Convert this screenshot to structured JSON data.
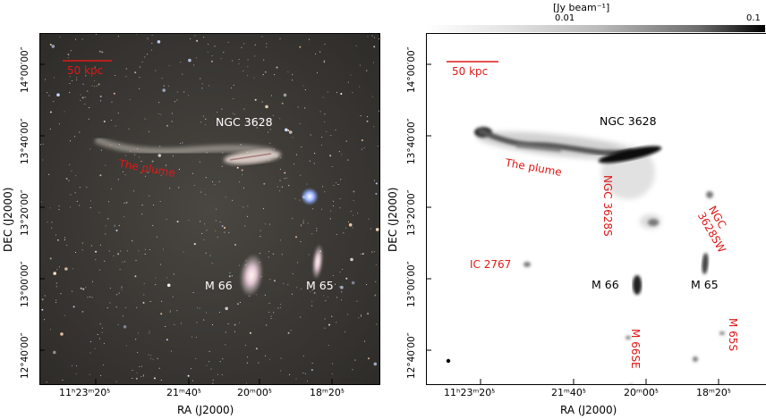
{
  "colorbar": {
    "unit_label": "[Jy beam⁻¹]",
    "tick_min": "0.01",
    "tick_max": "0.1"
  },
  "left_panel": {
    "scale_bar_label": "50 kpc",
    "labels": {
      "ngc3628": "NGC 3628",
      "plume": "The plume",
      "m66": "M 66",
      "m65": "M 65"
    }
  },
  "right_panel": {
    "scale_bar_label": "50 kpc",
    "labels": {
      "ngc3628": "NGC 3628",
      "plume": "The plume",
      "ngc3628s": "NGC 3628S",
      "ngc3628sw": "NGC 3628SW",
      "ic2767": "IC 2767",
      "m66": "M 66",
      "m65": "M 65",
      "m66se": "M 66SE",
      "m65s": "M 65S"
    }
  },
  "axes": {
    "xlabel": "RA (J2000)",
    "ylabel": "DEC (J2000)",
    "xticks": [
      "11ʰ23ᵐ20ˢ̇",
      "21ᵐ40ˢ̇",
      "20ᵐ00ˢ̇",
      "18ᵐ20ˢ̇"
    ],
    "xticks_right": [
      "11ʰ23ᵐ20ˢ̇",
      "21ᵐ40ˢ̇",
      "20ᵐ00ˢ̇",
      "18ᵐ20ˢ̇"
    ],
    "yticks": [
      "14°00′00″",
      "13°40′00″",
      "13°20′00″",
      "13°00′00″",
      "12°40′00″"
    ]
  },
  "colors": {
    "label_red": "#e01818",
    "label_white": "#ffffff",
    "label_black": "#000000"
  }
}
